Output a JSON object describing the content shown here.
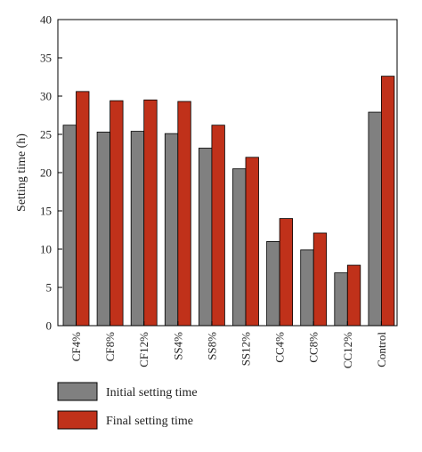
{
  "chart_data": {
    "type": "bar",
    "categories": [
      "CF4%",
      "CF8%",
      "CF12%",
      "SS4%",
      "SS8%",
      "SS12%",
      "CC4%",
      "CC8%",
      "CC12%",
      "Control"
    ],
    "series": [
      {
        "name": "Initial setting time",
        "color": "#808080",
        "values": [
          26.2,
          25.3,
          25.4,
          25.1,
          23.2,
          20.5,
          11.0,
          9.9,
          6.9,
          27.9
        ]
      },
      {
        "name": "Final setting time",
        "color": "#c0311a",
        "values": [
          30.6,
          29.4,
          29.5,
          29.3,
          26.2,
          22.0,
          14.0,
          12.1,
          7.9,
          32.6
        ]
      }
    ],
    "xlabel": "",
    "ylabel": "Setting time (h)",
    "ylim": [
      0,
      40
    ],
    "yticks": [
      0,
      5,
      10,
      15,
      20,
      25,
      30,
      35,
      40
    ],
    "grid": false,
    "legend_position": "bottom-left"
  }
}
